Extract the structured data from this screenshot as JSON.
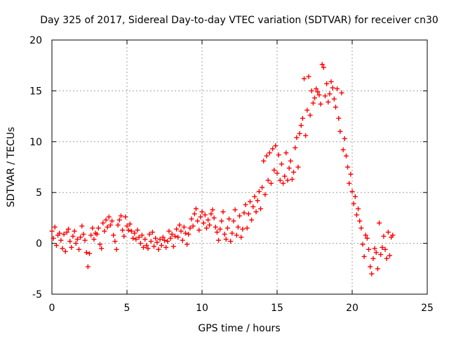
{
  "chart_data": {
    "type": "scatter",
    "title": "Day 325 of 2017, Sidereal Day-to-day VTEC variation (SDTVAR) for receiver cn30",
    "xlabel": "GPS time / hours",
    "ylabel": "SDTVAR / TECUs",
    "xlim": [
      0,
      25
    ],
    "ylim": [
      -5,
      20
    ],
    "xticks": [
      "0",
      "5",
      "10",
      "15",
      "20",
      "25"
    ],
    "yticks": [
      "-5",
      "0",
      "5",
      "10",
      "15",
      "20"
    ],
    "grid": true,
    "marker": "+",
    "series_color": "#ff0000",
    "series": [
      {
        "name": "SDTVAR",
        "points": [
          [
            0.0,
            1.2
          ],
          [
            0.1,
            0.5
          ],
          [
            0.2,
            1.6
          ],
          [
            0.3,
            -0.2
          ],
          [
            0.4,
            0.8
          ],
          [
            0.5,
            1.0
          ],
          [
            0.6,
            0.3
          ],
          [
            0.7,
            -0.5
          ],
          [
            0.8,
            0.9
          ],
          [
            0.9,
            -0.8
          ],
          [
            1.0,
            1.1
          ],
          [
            1.1,
            1.4
          ],
          [
            1.2,
            0.2
          ],
          [
            1.3,
            -0.4
          ],
          [
            1.4,
            0.7
          ],
          [
            1.5,
            1.2
          ],
          [
            1.6,
            0.0
          ],
          [
            1.7,
            0.4
          ],
          [
            1.8,
            -0.6
          ],
          [
            1.9,
            0.6
          ],
          [
            2.0,
            1.7
          ],
          [
            2.1,
            0.9
          ],
          [
            2.2,
            0.3
          ],
          [
            2.3,
            -0.9
          ],
          [
            2.4,
            -2.3
          ],
          [
            2.5,
            -1.0
          ],
          [
            2.6,
            0.8
          ],
          [
            2.7,
            1.5
          ],
          [
            2.8,
            0.4
          ],
          [
            2.9,
            1.0
          ],
          [
            3.0,
            0.9
          ],
          [
            3.1,
            1.5
          ],
          [
            3.2,
            -0.1
          ],
          [
            3.3,
            -0.5
          ],
          [
            3.4,
            2.0
          ],
          [
            3.5,
            1.2
          ],
          [
            3.6,
            2.3
          ],
          [
            3.7,
            1.6
          ],
          [
            3.8,
            2.6
          ],
          [
            3.9,
            1.8
          ],
          [
            4.0,
            2.2
          ],
          [
            4.1,
            0.8
          ],
          [
            4.2,
            0.2
          ],
          [
            4.3,
            -0.6
          ],
          [
            4.4,
            1.8
          ],
          [
            4.5,
            2.3
          ],
          [
            4.6,
            2.7
          ],
          [
            4.7,
            1.3
          ],
          [
            4.8,
            0.7
          ],
          [
            4.9,
            2.6
          ],
          [
            5.0,
            1.7
          ],
          [
            5.1,
            1.3
          ],
          [
            5.2,
            1.9
          ],
          [
            5.3,
            1.2
          ],
          [
            5.4,
            0.5
          ],
          [
            5.5,
            1.0
          ],
          [
            5.6,
            0.4
          ],
          [
            5.7,
            1.3
          ],
          [
            5.8,
            0.6
          ],
          [
            5.9,
            0.0
          ],
          [
            6.0,
            0.8
          ],
          [
            6.1,
            -0.4
          ],
          [
            6.2,
            0.4
          ],
          [
            6.3,
            -0.2
          ],
          [
            6.4,
            -0.5
          ],
          [
            6.5,
            0.9
          ],
          [
            6.6,
            0.2
          ],
          [
            6.7,
            1.1
          ],
          [
            6.8,
            -0.3
          ],
          [
            6.9,
            0.5
          ],
          [
            7.0,
            0.1
          ],
          [
            7.1,
            -0.6
          ],
          [
            7.2,
            0.4
          ],
          [
            7.3,
            -0.2
          ],
          [
            7.4,
            0.6
          ],
          [
            7.5,
            0.3
          ],
          [
            7.6,
            -0.4
          ],
          [
            7.7,
            0.2
          ],
          [
            7.8,
            1.2
          ],
          [
            7.9,
            0.5
          ],
          [
            8.0,
            0.9
          ],
          [
            8.1,
            -0.3
          ],
          [
            8.2,
            0.7
          ],
          [
            8.3,
            1.4
          ],
          [
            8.4,
            0.6
          ],
          [
            8.5,
            1.8
          ],
          [
            8.6,
            1.2
          ],
          [
            8.7,
            0.3
          ],
          [
            8.8,
            1.6
          ],
          [
            8.9,
            1.0
          ],
          [
            9.0,
            -0.1
          ],
          [
            9.1,
            0.9
          ],
          [
            9.2,
            1.5
          ],
          [
            9.3,
            2.4
          ],
          [
            9.4,
            1.7
          ],
          [
            9.5,
            2.9
          ],
          [
            9.6,
            3.4
          ],
          [
            9.7,
            2.2
          ],
          [
            9.8,
            1.3
          ],
          [
            9.9,
            2.6
          ],
          [
            10.0,
            3.1
          ],
          [
            10.1,
            2.0
          ],
          [
            10.2,
            2.8
          ],
          [
            10.3,
            1.5
          ],
          [
            10.4,
            2.3
          ],
          [
            10.5,
            1.8
          ],
          [
            10.6,
            2.9
          ],
          [
            10.7,
            3.3
          ],
          [
            10.8,
            2.5
          ],
          [
            10.9,
            1.6
          ],
          [
            11.0,
            1.1
          ],
          [
            11.1,
            0.3
          ],
          [
            11.2,
            1.4
          ],
          [
            11.3,
            2.2
          ],
          [
            11.4,
            3.1
          ],
          [
            11.5,
            0.9
          ],
          [
            11.6,
            0.4
          ],
          [
            11.7,
            1.5
          ],
          [
            11.8,
            2.4
          ],
          [
            11.9,
            0.2
          ],
          [
            12.0,
            1.0
          ],
          [
            12.1,
            2.2
          ],
          [
            12.2,
            3.3
          ],
          [
            12.3,
            0.8
          ],
          [
            12.4,
            1.6
          ],
          [
            12.5,
            2.7
          ],
          [
            12.6,
            0.6
          ],
          [
            12.7,
            1.4
          ],
          [
            12.8,
            3.0
          ],
          [
            12.9,
            3.8
          ],
          [
            13.0,
            1.5
          ],
          [
            13.1,
            2.9
          ],
          [
            13.2,
            4.1
          ],
          [
            13.3,
            2.3
          ],
          [
            13.4,
            3.6
          ],
          [
            13.5,
            4.6
          ],
          [
            13.6,
            3.1
          ],
          [
            13.7,
            4.2
          ],
          [
            13.8,
            5.1
          ],
          [
            13.9,
            3.4
          ],
          [
            14.0,
            5.5
          ],
          [
            14.1,
            8.1
          ],
          [
            14.2,
            4.8
          ],
          [
            14.3,
            8.6
          ],
          [
            14.4,
            6.2
          ],
          [
            14.5,
            8.9
          ],
          [
            14.6,
            5.9
          ],
          [
            14.7,
            9.3
          ],
          [
            14.8,
            7.2
          ],
          [
            14.9,
            9.6
          ],
          [
            15.0,
            6.9
          ],
          [
            15.1,
            8.7
          ],
          [
            15.2,
            6.2
          ],
          [
            15.3,
            7.8
          ],
          [
            15.4,
            5.9
          ],
          [
            15.5,
            6.6
          ],
          [
            15.6,
            8.9
          ],
          [
            15.7,
            6.2
          ],
          [
            15.8,
            7.4
          ],
          [
            15.9,
            8.1
          ],
          [
            16.0,
            6.3
          ],
          [
            16.1,
            7.0
          ],
          [
            16.2,
            9.4
          ],
          [
            16.3,
            10.4
          ],
          [
            16.4,
            7.5
          ],
          [
            16.5,
            10.8
          ],
          [
            16.6,
            11.6
          ],
          [
            16.7,
            12.3
          ],
          [
            16.8,
            16.2
          ],
          [
            16.9,
            10.6
          ],
          [
            17.0,
            13.1
          ],
          [
            17.1,
            16.4
          ],
          [
            17.2,
            12.6
          ],
          [
            17.3,
            15.0
          ],
          [
            17.4,
            13.8
          ],
          [
            17.5,
            14.3
          ],
          [
            17.6,
            15.2
          ],
          [
            17.7,
            14.9
          ],
          [
            17.8,
            14.6
          ],
          [
            17.9,
            13.7
          ],
          [
            18.0,
            17.6
          ],
          [
            18.1,
            17.3
          ],
          [
            18.2,
            14.5
          ],
          [
            18.3,
            15.7
          ],
          [
            18.4,
            13.9
          ],
          [
            18.5,
            14.7
          ],
          [
            18.6,
            15.9
          ],
          [
            18.7,
            15.3
          ],
          [
            18.8,
            14.2
          ],
          [
            18.9,
            13.4
          ],
          [
            19.0,
            15.2
          ],
          [
            19.1,
            12.3
          ],
          [
            19.2,
            11.0
          ],
          [
            19.3,
            14.8
          ],
          [
            19.4,
            9.2
          ],
          [
            19.5,
            10.3
          ],
          [
            19.6,
            8.6
          ],
          [
            19.7,
            7.5
          ],
          [
            19.8,
            5.9
          ],
          [
            19.9,
            6.8
          ],
          [
            20.0,
            5.1
          ],
          [
            20.1,
            3.9
          ],
          [
            20.2,
            4.6
          ],
          [
            20.3,
            2.8
          ],
          [
            20.4,
            3.4
          ],
          [
            20.5,
            2.2
          ],
          [
            20.6,
            1.5
          ],
          [
            20.7,
            -0.1
          ],
          [
            20.8,
            -1.3
          ],
          [
            20.9,
            0.8
          ],
          [
            21.0,
            0.5
          ],
          [
            21.1,
            -0.6
          ],
          [
            21.2,
            -2.3
          ],
          [
            21.3,
            -3.0
          ],
          [
            21.4,
            -1.5
          ],
          [
            21.5,
            -0.5
          ],
          [
            21.6,
            -0.9
          ],
          [
            21.7,
            -2.5
          ],
          [
            21.8,
            2.0
          ],
          [
            21.9,
            -1.1
          ],
          [
            22.0,
            -0.4
          ],
          [
            22.1,
            0.7
          ],
          [
            22.2,
            -0.6
          ],
          [
            22.3,
            -1.5
          ],
          [
            22.4,
            1.1
          ],
          [
            22.5,
            -1.2
          ],
          [
            22.6,
            0.6
          ],
          [
            22.7,
            0.8
          ]
        ]
      }
    ]
  }
}
